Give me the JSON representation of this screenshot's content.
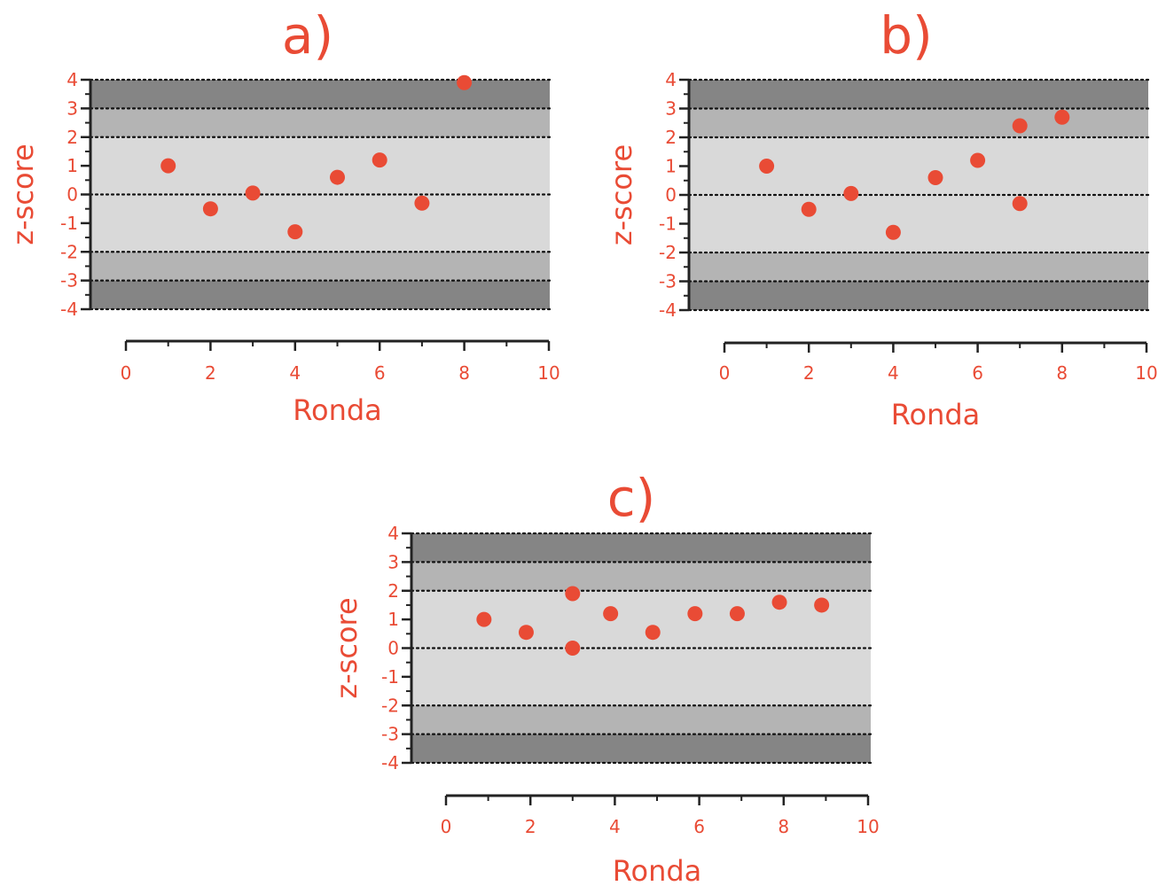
{
  "chart_data": [
    {
      "type": "scatter",
      "title": "a)",
      "xlabel": "Ronda",
      "ylabel": "z-score",
      "xlim": [
        0,
        10
      ],
      "ylim": [
        -4,
        4
      ],
      "x_ticks": [
        "0",
        "2",
        "4",
        "6",
        "8",
        "10"
      ],
      "y_ticks": [
        "4",
        "3",
        "2",
        "1",
        "0",
        "-1",
        "-2",
        "-3",
        "-4"
      ],
      "bands": [
        {
          "from": -2,
          "to": 2,
          "color": "#d9d9d9"
        },
        {
          "from": 2,
          "to": 3,
          "color": "#b4b4b4"
        },
        {
          "from": -3,
          "to": -2,
          "color": "#b4b4b4"
        },
        {
          "from": 3,
          "to": 4,
          "color": "#858585"
        },
        {
          "from": -4,
          "to": -3,
          "color": "#858585"
        }
      ],
      "reference_lines": [
        -4,
        -3,
        -2,
        0,
        2,
        3,
        4
      ],
      "x": [
        1,
        2,
        3,
        4,
        5,
        6,
        7,
        8
      ],
      "y": [
        1.0,
        -0.5,
        0.05,
        -1.3,
        0.6,
        1.2,
        -0.3,
        3.9
      ]
    },
    {
      "type": "scatter",
      "title": "b)",
      "xlabel": "Ronda",
      "ylabel": "z-score",
      "xlim": [
        0,
        10
      ],
      "ylim": [
        -4,
        4
      ],
      "x_ticks": [
        "0",
        "2",
        "4",
        "6",
        "8",
        "10"
      ],
      "y_ticks": [
        "4",
        "3",
        "2",
        "1",
        "0",
        "-1",
        "-2",
        "-3",
        "-4"
      ],
      "bands": [
        {
          "from": -2,
          "to": 2,
          "color": "#d9d9d9"
        },
        {
          "from": 2,
          "to": 3,
          "color": "#b4b4b4"
        },
        {
          "from": -3,
          "to": -2,
          "color": "#b4b4b4"
        },
        {
          "from": 3,
          "to": 4,
          "color": "#858585"
        },
        {
          "from": -4,
          "to": -3,
          "color": "#858585"
        }
      ],
      "reference_lines": [
        -4,
        -3,
        -2,
        0,
        2,
        3,
        4
      ],
      "x": [
        1,
        2,
        3,
        4,
        5,
        6,
        7,
        7,
        8
      ],
      "y": [
        1.0,
        -0.5,
        0.05,
        -1.3,
        0.6,
        1.2,
        -0.3,
        2.4,
        2.7
      ]
    },
    {
      "type": "scatter",
      "title": "c)",
      "xlabel": "Ronda",
      "ylabel": "z-score",
      "xlim": [
        0,
        10
      ],
      "ylim": [
        -4,
        4
      ],
      "x_ticks": [
        "0",
        "2",
        "4",
        "6",
        "8",
        "10"
      ],
      "y_ticks": [
        "4",
        "3",
        "2",
        "1",
        "0",
        "-1",
        "-2",
        "-3",
        "-4"
      ],
      "bands": [
        {
          "from": -2,
          "to": 2,
          "color": "#d9d9d9"
        },
        {
          "from": 2,
          "to": 3,
          "color": "#b4b4b4"
        },
        {
          "from": -3,
          "to": -2,
          "color": "#b4b4b4"
        },
        {
          "from": 3,
          "to": 4,
          "color": "#858585"
        },
        {
          "from": -4,
          "to": -3,
          "color": "#858585"
        }
      ],
      "reference_lines": [
        -4,
        -3,
        -2,
        0,
        2,
        3,
        4
      ],
      "x": [
        0.9,
        1.9,
        3.0,
        3.0,
        3.9,
        4.9,
        5.9,
        6.9,
        7.9,
        8.9
      ],
      "y": [
        1.0,
        0.55,
        0.0,
        1.9,
        1.2,
        0.55,
        1.2,
        1.2,
        1.6,
        1.5
      ]
    }
  ],
  "colors": {
    "accent": "#e94b35",
    "axis": "#222222",
    "grid": "#111111",
    "band_inner": "#d9d9d9",
    "band_mid": "#b4b4b4",
    "band_outer": "#858585"
  }
}
